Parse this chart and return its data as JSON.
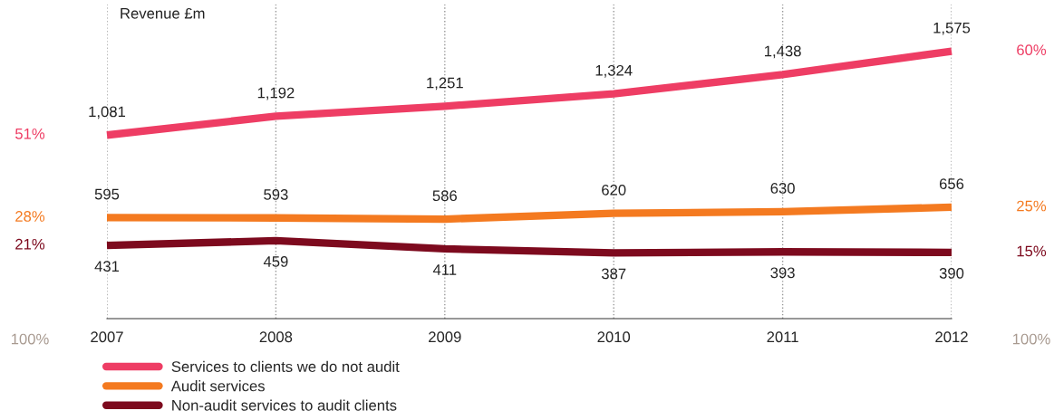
{
  "chart_data": {
    "type": "line",
    "ylabel": "Revenue £m",
    "categories": [
      "2007",
      "2008",
      "2009",
      "2010",
      "2011",
      "2012"
    ],
    "series": [
      {
        "name": "Services to clients we do not audit",
        "color": "#ee3d64",
        "values": [
          1081,
          1192,
          1251,
          1324,
          1438,
          1575
        ],
        "value_labels": [
          "1,081",
          "1,192",
          "1,251",
          "1,324",
          "1,438",
          "1,575"
        ]
      },
      {
        "name": "Audit services",
        "color": "#f47a20",
        "values": [
          595,
          593,
          586,
          620,
          630,
          656
        ],
        "value_labels": [
          "595",
          "593",
          "586",
          "620",
          "630",
          "656"
        ]
      },
      {
        "name": "Non-audit services to audit clients",
        "color": "#7d0a1e",
        "values": [
          431,
          459,
          411,
          387,
          393,
          390
        ],
        "value_labels": [
          "431",
          "459",
          "411",
          "387",
          "393",
          "390"
        ]
      }
    ],
    "ylim": [
      0,
      1850
    ],
    "tick_labels": "x",
    "grid": "x",
    "legend": "bottom",
    "marker": "none",
    "line_style": "solid",
    "annotations": [
      "51%",
      "28%",
      "21%",
      "100%",
      "60%",
      "25%",
      "15%",
      "100%"
    ]
  }
}
